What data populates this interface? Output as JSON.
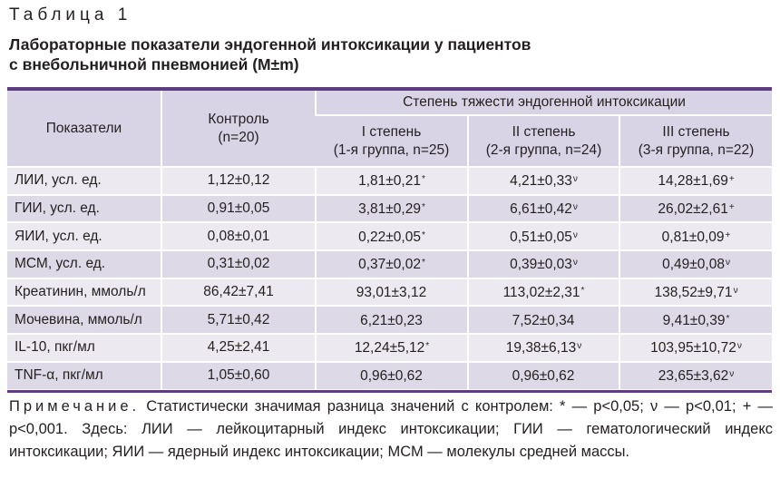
{
  "table_label": "Таблица 1",
  "title_line1": "Лабораторные показатели эндогенной интоксикации у пациентов",
  "title_line2": "с внебольничной пневмонией (M±m)",
  "header": {
    "indicators": "Показатели",
    "control_line1": "Контроль",
    "control_line2": "(n=20)",
    "severity": "Степень тяжести эндогенной интоксикации",
    "groups": [
      {
        "line1": "I степень",
        "line2": "(1-я группа, n=25)"
      },
      {
        "line1": "II степень",
        "line2": "(2-я группа, n=24)"
      },
      {
        "line1": "III степень",
        "line2": "(3-я группа, n=22)"
      }
    ]
  },
  "rows": [
    {
      "name": "ЛИИ, усл. ед.",
      "control": "1,12±0,12",
      "g1": "1,81±0,21",
      "g1_mark": "*",
      "g2": "4,21±0,33",
      "g2_mark": "ν",
      "g3": "14,28±1,69",
      "g3_mark": "+"
    },
    {
      "name": "ГИИ, усл. ед.",
      "control": "0,91±0,05",
      "g1": "3,81±0,29",
      "g1_mark": "*",
      "g2": "6,61±0,42",
      "g2_mark": "ν",
      "g3": "26,02±2,61",
      "g3_mark": "+"
    },
    {
      "name": "ЯИИ, усл. ед.",
      "control": "0,08±0,01",
      "g1": "0,22±0,05",
      "g1_mark": "*",
      "g2": "0,51±0,05",
      "g2_mark": "ν",
      "g3": "0,81±0,09",
      "g3_mark": "+"
    },
    {
      "name": "МСМ, усл. ед.",
      "control": "0,31±0,02",
      "g1": "0,37±0,02",
      "g1_mark": "*",
      "g2": "0,39±0,03",
      "g2_mark": "ν",
      "g3": "0,49±0,08",
      "g3_mark": "ν"
    },
    {
      "name": "Креатинин, ммоль/л",
      "control": "86,42±7,41",
      "g1": "93,01±3,12",
      "g1_mark": "",
      "g2": "113,02±2,31",
      "g2_mark": "*",
      "g3": "138,52±9,71",
      "g3_mark": "ν"
    },
    {
      "name": "Мочевина, ммоль/л",
      "control": "5,71±0,42",
      "g1": "6,21±0,23",
      "g1_mark": "",
      "g2": "7,52±0,34",
      "g2_mark": "",
      "g3": "9,41±0,39",
      "g3_mark": "*"
    },
    {
      "name": "IL-10, пкг/мл",
      "control": "4,25±2,41",
      "g1": "12,24±5,12",
      "g1_mark": "*",
      "g2": "19,38±6,13",
      "g2_mark": "ν",
      "g3": "103,95±10,72",
      "g3_mark": "ν"
    },
    {
      "name": "TNF-α, пкг/мл",
      "control": "1,05±0,60",
      "g1": "0,96±0,62",
      "g1_mark": "",
      "g2": "0,96±0,62",
      "g2_mark": "",
      "g3": "23,65±3,62",
      "g3_mark": "ν"
    }
  ],
  "note": {
    "label": "Примечание.",
    "text": " Статистически значимая разница значений с контролем: * — p<0,05; ν — p<0,01; + — p<0,001. Здесь: ЛИИ — лейкоцитарный индекс интоксикации; ГИИ — гематологический индекс интоксикации; ЯИИ — ядерный индекс интоксикации; МСМ — молекулы средней массы."
  },
  "colors": {
    "rule": "#5e3d80",
    "header_bg": "#d9d3e6",
    "row_odd": "#ece9f1",
    "row_even": "#ded9e7"
  }
}
